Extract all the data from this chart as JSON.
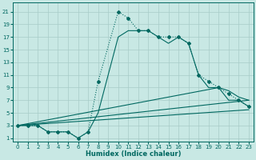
{
  "xlabel": "Humidex (Indice chaleur)",
  "xlim": [
    -0.5,
    23.5
  ],
  "ylim": [
    0.5,
    22.5
  ],
  "xticks": [
    0,
    1,
    2,
    3,
    4,
    5,
    6,
    7,
    8,
    9,
    10,
    11,
    12,
    13,
    14,
    15,
    16,
    17,
    18,
    19,
    20,
    21,
    22,
    23
  ],
  "yticks": [
    1,
    3,
    5,
    7,
    9,
    11,
    13,
    15,
    17,
    19,
    21
  ],
  "bg": "#c8e8e4",
  "grid_color": "#a8ccc8",
  "lc": "#006860",
  "curves": [
    {
      "x": [
        0,
        1,
        2,
        3,
        4,
        5,
        6,
        7,
        8,
        10,
        11,
        12,
        13,
        14,
        15,
        16,
        17,
        18,
        19,
        20,
        21,
        22,
        23
      ],
      "y": [
        3,
        3,
        3,
        2,
        2,
        2,
        1,
        2,
        10,
        21,
        20,
        18,
        18,
        17,
        17,
        17,
        16,
        11,
        10,
        9,
        8,
        7,
        6
      ],
      "ls": ":",
      "lw": 0.8,
      "marker": "D",
      "ms": 2.0
    },
    {
      "x": [
        0,
        1,
        2,
        3,
        4,
        5,
        6,
        7,
        8,
        10,
        11,
        12,
        13,
        14,
        15,
        16,
        17,
        18,
        19,
        20,
        21,
        22,
        23
      ],
      "y": [
        3,
        3,
        3,
        2,
        2,
        2,
        1,
        2,
        5,
        17,
        18,
        18,
        18,
        17,
        16,
        17,
        16,
        11,
        9,
        9,
        7,
        7,
        6
      ],
      "ls": "-",
      "lw": 0.8,
      "marker": null,
      "ms": 0
    },
    {
      "x": [
        0,
        20,
        21,
        22,
        23
      ],
      "y": [
        3,
        9,
        8.5,
        7.5,
        7
      ],
      "ls": "-",
      "lw": 0.8,
      "marker": null,
      "ms": 0
    },
    {
      "x": [
        0,
        23
      ],
      "y": [
        3,
        7
      ],
      "ls": "-",
      "lw": 0.8,
      "marker": null,
      "ms": 0
    },
    {
      "x": [
        0,
        23
      ],
      "y": [
        3,
        5.5
      ],
      "ls": "-",
      "lw": 0.8,
      "marker": null,
      "ms": 0
    }
  ]
}
